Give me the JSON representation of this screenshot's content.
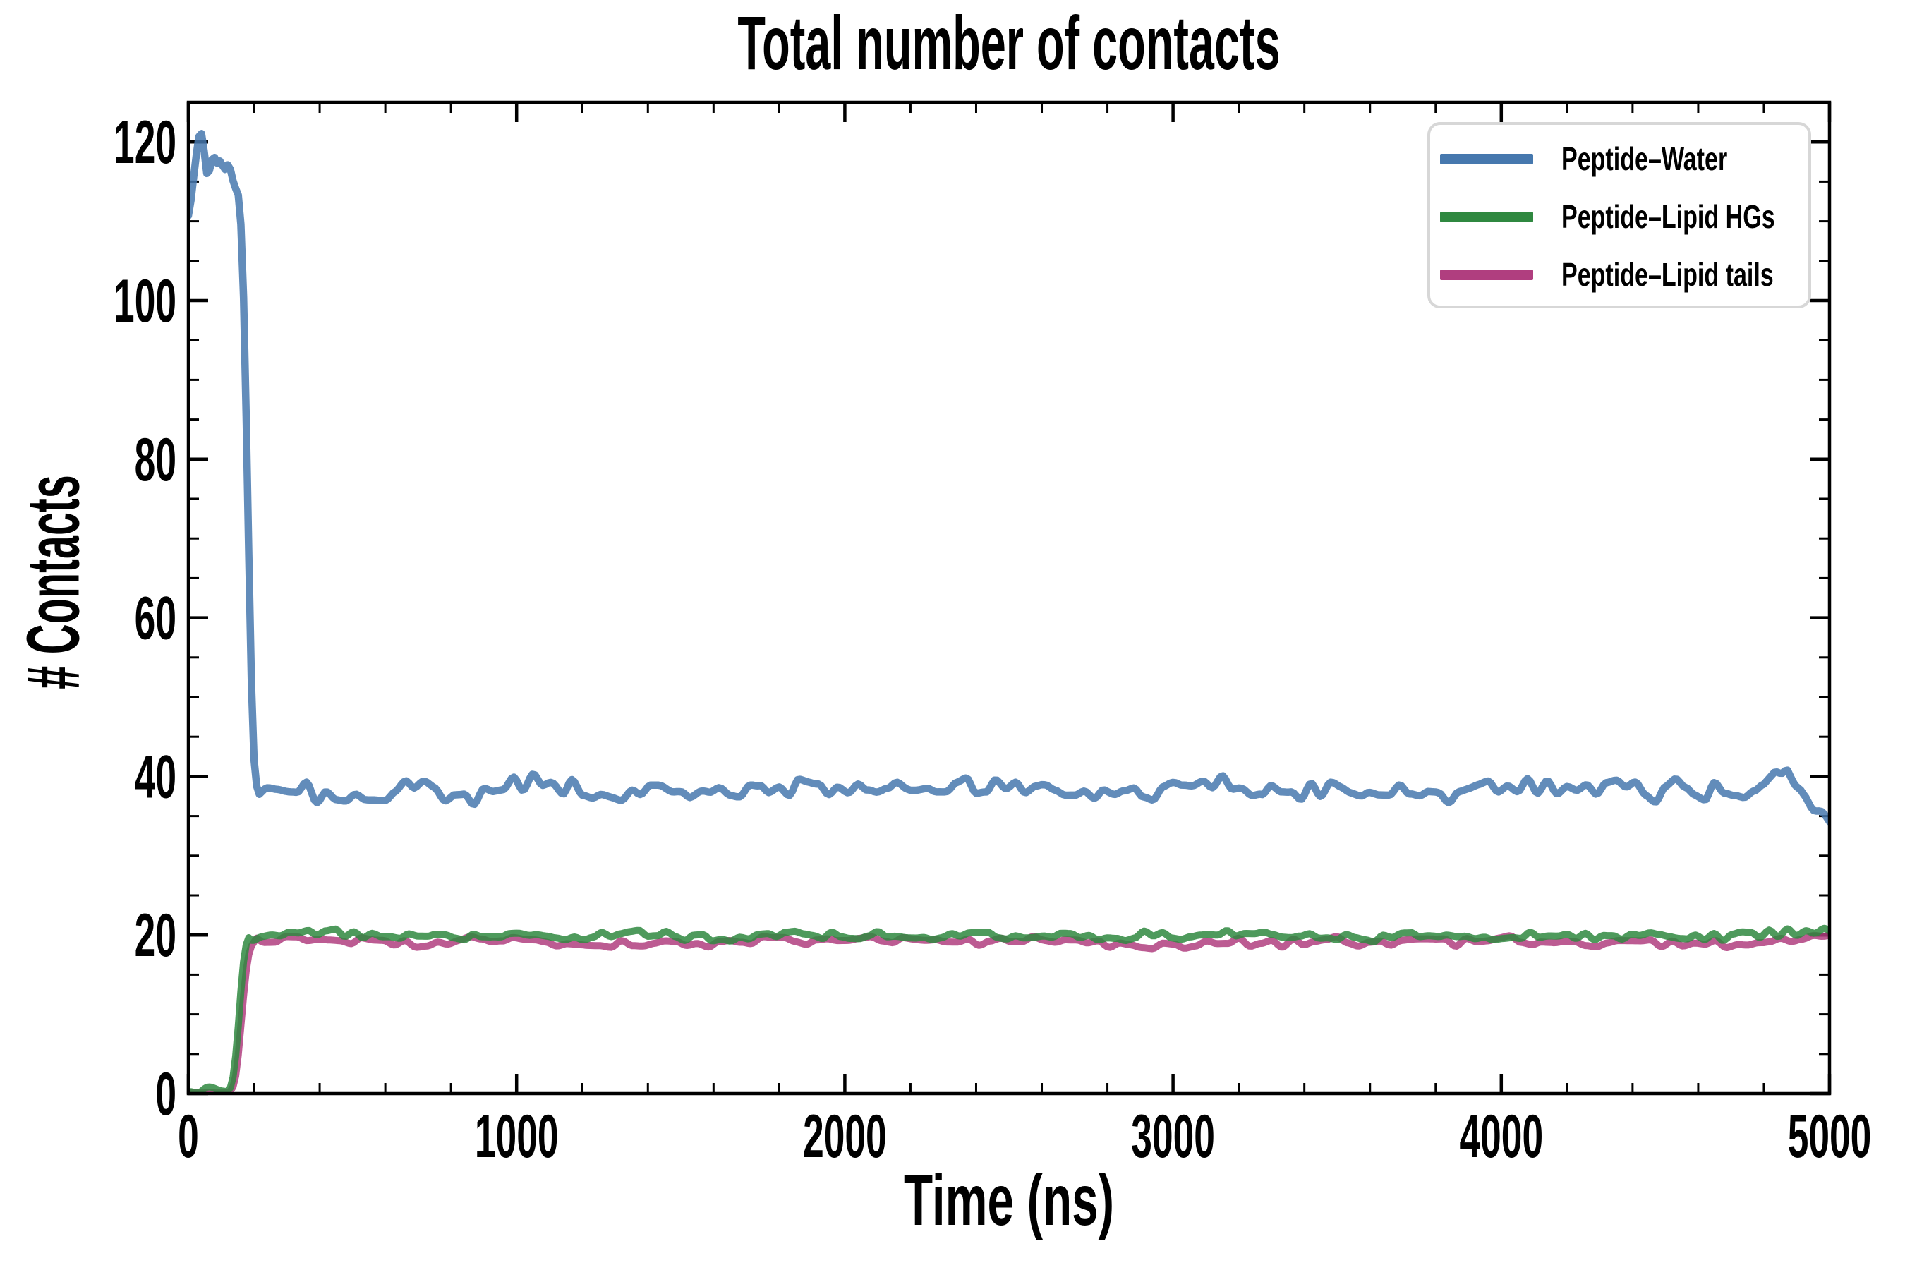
{
  "chart_data": {
    "type": "line",
    "title": "Total number of contacts",
    "xlabel": "Time (ns)",
    "ylabel": "# Contacts",
    "xlim": [
      0,
      5000
    ],
    "ylim": [
      0,
      125
    ],
    "x_major_ticks": [
      0,
      1000,
      2000,
      3000,
      4000,
      5000
    ],
    "x_minor_step": 200,
    "y_major_ticks": [
      0,
      20,
      40,
      60,
      80,
      100,
      120
    ],
    "y_minor_step": 5,
    "grid": false,
    "tick_direction": "in",
    "axis_color": "#000000",
    "legend_position": "upper right",
    "legend_border_color": "#d7d7d7",
    "series": [
      {
        "name": "Peptide–Water",
        "color": "#4678AE",
        "linewidth": 10.5,
        "alpha": 0.85,
        "zorder": 2,
        "seeds": [
          3,
          17
        ],
        "noise": {
          "coarse_amp": 0.9,
          "coarse_period": 120,
          "fine_amp": 1.25,
          "fine_period": 30
        },
        "pre_noise": 0.4,
        "noise_ramp": [
          148,
          212
        ],
        "base_points": [
          [
            0,
            110.5
          ],
          [
            8,
            112.5
          ],
          [
            20,
            117
          ],
          [
            30,
            120.5
          ],
          [
            38,
            121.6
          ],
          [
            46,
            119.5
          ],
          [
            56,
            115.8
          ],
          [
            64,
            116.2
          ],
          [
            72,
            117.8
          ],
          [
            80,
            118.3
          ],
          [
            90,
            117.6
          ],
          [
            100,
            118.3
          ],
          [
            108,
            116.5
          ],
          [
            116,
            117.2
          ],
          [
            124,
            117.6
          ],
          [
            132,
            116.2
          ],
          [
            140,
            114.8
          ],
          [
            148,
            114.4
          ],
          [
            156,
            112.5
          ],
          [
            164,
            107
          ],
          [
            172,
            94
          ],
          [
            180,
            77
          ],
          [
            188,
            59
          ],
          [
            196,
            45
          ],
          [
            204,
            39.5
          ],
          [
            212,
            38.2
          ],
          [
            300,
            38.5
          ],
          [
            400,
            37.8
          ],
          [
            500,
            38.4
          ],
          [
            600,
            38
          ],
          [
            700,
            38.7
          ],
          [
            800,
            37.5
          ],
          [
            900,
            38.2
          ],
          [
            1000,
            38.9
          ],
          [
            1100,
            39.6
          ],
          [
            1200,
            37.9
          ],
          [
            1300,
            37.5
          ],
          [
            1400,
            37.9
          ],
          [
            1500,
            36.6
          ],
          [
            1600,
            38
          ],
          [
            1700,
            38.7
          ],
          [
            1800,
            38.9
          ],
          [
            1900,
            38
          ],
          [
            2000,
            38.4
          ],
          [
            2100,
            38.9
          ],
          [
            2200,
            37.7
          ],
          [
            2300,
            38
          ],
          [
            2400,
            38.3
          ],
          [
            2500,
            38
          ],
          [
            2600,
            38.5
          ],
          [
            2700,
            38
          ],
          [
            2800,
            37.6
          ],
          [
            2900,
            38
          ],
          [
            3000,
            37.8
          ],
          [
            3100,
            38.5
          ],
          [
            3200,
            38.7
          ],
          [
            3300,
            38
          ],
          [
            3400,
            38.7
          ],
          [
            3500,
            39.2
          ],
          [
            3600,
            37.9
          ],
          [
            3700,
            37.5
          ],
          [
            3800,
            38
          ],
          [
            3900,
            37.8
          ],
          [
            4000,
            38.1
          ],
          [
            4100,
            38.4
          ],
          [
            4200,
            38.7
          ],
          [
            4300,
            38.9
          ],
          [
            4400,
            39.1
          ],
          [
            4500,
            38
          ],
          [
            4600,
            37.7
          ],
          [
            4700,
            38
          ],
          [
            4800,
            38.7
          ],
          [
            4870,
            41.8
          ],
          [
            4920,
            37.6
          ],
          [
            4960,
            36.2
          ],
          [
            5000,
            34.6
          ]
        ]
      },
      {
        "name": "Peptide–Lipid HGs",
        "color": "#2F8840",
        "linewidth": 10,
        "alpha": 0.85,
        "zorder": 4,
        "seeds": [
          23,
          31
        ],
        "noise": {
          "coarse_amp": 0.35,
          "coarse_period": 140,
          "fine_amp": 0.5,
          "fine_period": 28
        },
        "pre_noise": 0.3,
        "noise_ramp": [
          126,
          190
        ],
        "base_points": [
          [
            0,
            0.25
          ],
          [
            36,
            0.3
          ],
          [
            46,
            0.6
          ],
          [
            58,
            0.85
          ],
          [
            70,
            0.9
          ],
          [
            82,
            0.75
          ],
          [
            95,
            0.5
          ],
          [
            110,
            0.35
          ],
          [
            122,
            0.4
          ],
          [
            130,
            0.9
          ],
          [
            138,
            2.5
          ],
          [
            146,
            5.5
          ],
          [
            154,
            9.5
          ],
          [
            162,
            14
          ],
          [
            170,
            17.5
          ],
          [
            178,
            19.2
          ],
          [
            184,
            19.7
          ],
          [
            190,
            19.9
          ],
          [
            400,
            20
          ],
          [
            700,
            19.8
          ],
          [
            1000,
            20.1
          ],
          [
            1300,
            19.8
          ],
          [
            1600,
            19.9
          ],
          [
            1900,
            20
          ],
          [
            2200,
            19.8
          ],
          [
            2500,
            20
          ],
          [
            2800,
            19.9
          ],
          [
            3100,
            20
          ],
          [
            3400,
            19.8
          ],
          [
            3700,
            20
          ],
          [
            4000,
            19.9
          ],
          [
            4300,
            20.1
          ],
          [
            4600,
            19.9
          ],
          [
            4800,
            20.3
          ],
          [
            5000,
            20.4
          ]
        ]
      },
      {
        "name": "Peptide–Lipid tails",
        "color": "#B03E7F",
        "linewidth": 10,
        "alpha": 0.85,
        "zorder": 3,
        "seeds": [
          41,
          57
        ],
        "noise": {
          "coarse_amp": 0.4,
          "coarse_period": 150,
          "fine_amp": 0.55,
          "fine_period": 33
        },
        "pre_noise": 0.2,
        "noise_ramp": [
          128,
          208
        ],
        "base_points": [
          [
            0,
            0.12
          ],
          [
            118,
            0.12
          ],
          [
            130,
            0.35
          ],
          [
            140,
            1.2
          ],
          [
            148,
            3.2
          ],
          [
            156,
            6.5
          ],
          [
            164,
            10.5
          ],
          [
            172,
            14
          ],
          [
            180,
            16.8
          ],
          [
            188,
            18.2
          ],
          [
            196,
            18.9
          ],
          [
            204,
            19.2
          ],
          [
            210,
            19.3
          ],
          [
            400,
            19.2
          ],
          [
            700,
            19
          ],
          [
            1000,
            19.3
          ],
          [
            1300,
            18.9
          ],
          [
            1600,
            19.2
          ],
          [
            1900,
            19.1
          ],
          [
            2200,
            19.3
          ],
          [
            2500,
            19
          ],
          [
            2800,
            19.2
          ],
          [
            3100,
            19.1
          ],
          [
            3400,
            19.3
          ],
          [
            3700,
            19
          ],
          [
            4000,
            19.2
          ],
          [
            4300,
            19.1
          ],
          [
            4600,
            19.3
          ],
          [
            4800,
            18.8
          ],
          [
            5000,
            19.7
          ]
        ]
      }
    ]
  }
}
